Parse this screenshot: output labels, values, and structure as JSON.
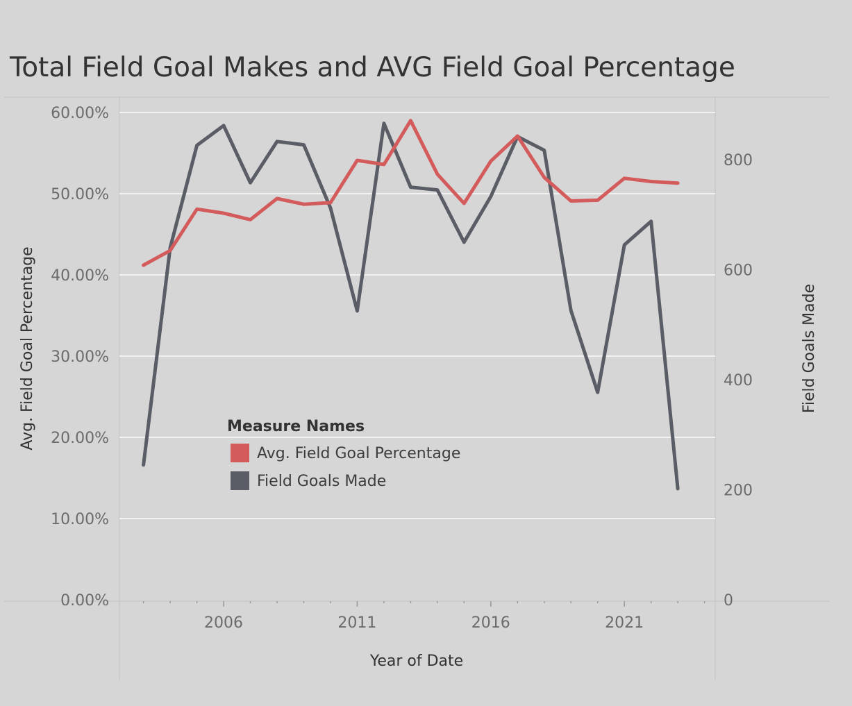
{
  "colors": {
    "background": "#d6d6d6",
    "gridline": "#f2f2f2",
    "pct_line": "#d45b5b",
    "fgm_line": "#5a5d66",
    "divider": "#c8c8c8"
  },
  "chart_data": {
    "type": "line",
    "title": "Total Field Goal Makes and AVG Field Goal Percentage",
    "xlabel": "Year of Date",
    "ylabel_left": "Avg. Field Goal Percentage",
    "ylabel_right": "Field Goals Made",
    "x_ticks": [
      "2006",
      "2011",
      "2016",
      "2021"
    ],
    "y_left_ticks": [
      "0.00%",
      "10.00%",
      "20.00%",
      "30.00%",
      "40.00%",
      "50.00%",
      "60.00%"
    ],
    "y_right_ticks": [
      "0",
      "200",
      "400",
      "600",
      "800"
    ],
    "y_left_range": [
      0,
      60
    ],
    "y_right_range": [
      0,
      875
    ],
    "x_range": [
      2002.1,
      2024.4
    ],
    "grid": true,
    "legend_title": "Measure Names",
    "x": [
      2003,
      2004,
      2005,
      2006,
      2007,
      2008,
      2009,
      2010,
      2011,
      2012,
      2013,
      2014,
      2015,
      2016,
      2017,
      2018,
      2019,
      2020,
      2021,
      2022,
      2023
    ],
    "series": [
      {
        "name": "Avg. Field Goal Percentage",
        "axis": "left",
        "color": "#d45b5b",
        "values": [
          41.2,
          43.0,
          48.1,
          47.6,
          46.8,
          49.4,
          48.7,
          48.9,
          54.1,
          53.6,
          59.0,
          52.4,
          48.8,
          54.0,
          57.1,
          52.0,
          49.1,
          49.2,
          51.9,
          51.5,
          51.3
        ]
      },
      {
        "name": "Field Goals Made",
        "axis": "right",
        "color": "#5a5d66",
        "values": [
          245,
          640,
          826,
          862,
          758,
          833,
          827,
          712,
          525,
          866,
          750,
          745,
          650,
          733,
          842,
          817,
          526,
          377,
          645,
          688,
          202
        ]
      }
    ]
  }
}
